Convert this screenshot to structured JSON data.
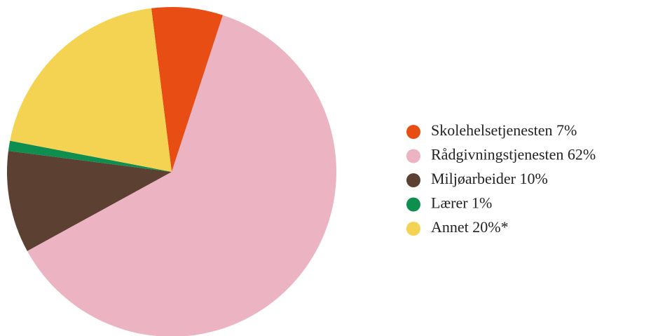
{
  "chart_data": {
    "type": "pie",
    "categories": [
      "Skolehelsetjenesten",
      "Rådgivningstjenesten",
      "Miljøarbeider",
      "Lærer",
      "Annet"
    ],
    "values": [
      7,
      62,
      10,
      1,
      20
    ],
    "value_labels": [
      "7%",
      "62%",
      "10%",
      "1%",
      "20%*"
    ],
    "colors": [
      "#e84e14",
      "#ecb3c3",
      "#5c4032",
      "#0f8f4f",
      "#f5d352"
    ],
    "legend": "right"
  }
}
